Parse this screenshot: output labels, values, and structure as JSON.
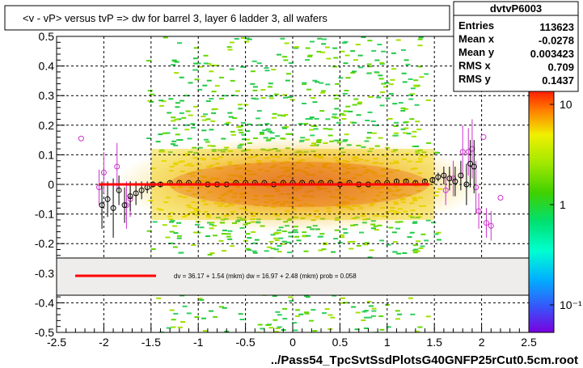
{
  "title": "<v - vP>       versus  tvP =>  dw for barrel 3, layer 6 ladder 3, all wafers",
  "stats": {
    "name": "dvtvP6003",
    "rows": [
      {
        "label": "Entries",
        "value": "113623"
      },
      {
        "label": "Mean x",
        "value": "-0.0278"
      },
      {
        "label": "Mean y",
        "value": "0.003423"
      },
      {
        "label": "RMS x",
        "value": "0.709"
      },
      {
        "label": "RMS y",
        "value": "0.1437"
      }
    ]
  },
  "fit_text": "dv =    36.17 +   1.54 (mkm) dw =    16.97 +   2.48 (mkm) prob = 0.058",
  "colors": {
    "fit_line": "#ff0000",
    "open_circle": "#000000",
    "magenta_circle": "#cc33cc",
    "band_fill": "#efecec"
  },
  "chart_data": {
    "type": "heatmap",
    "title": "<v - vP>       versus  tvP =>  dw for barrel 3, layer 6 ladder 3, all wafers",
    "xlabel": "../Pass54_TpcSvtSsdPlotsG40GNFP25rCut0.5cm.root",
    "ylabel": "",
    "xlim": [
      -2.5,
      2.5
    ],
    "ylim": [
      -0.5,
      0.5
    ],
    "x_ticks": [
      "-2.5",
      "-2",
      "-1.5",
      "-1",
      "-0.5",
      "0",
      "0.5",
      "1",
      "1.5",
      "2",
      "2.5"
    ],
    "y_ticks": [
      "-0.5",
      "-0.4",
      "-0.3",
      "-0.2",
      "-0.1",
      "0",
      "0.1",
      "0.2",
      "0.3",
      "0.4",
      "0.5"
    ],
    "grid": true,
    "colorbar": {
      "scale": "log",
      "labels": [
        "10",
        "1",
        "10⁻¹"
      ]
    },
    "fit_line": {
      "x": [
        -2.05,
        1.45
      ],
      "y": [
        0.0,
        0.0
      ]
    },
    "profile_mean_points": [
      {
        "x": -2.02,
        "y": -0.07,
        "err": 0.08
      },
      {
        "x": -1.96,
        "y": -0.05,
        "err": 0.06
      },
      {
        "x": -1.9,
        "y": -0.08,
        "err": 0.1
      },
      {
        "x": -1.84,
        "y": -0.02,
        "err": 0.05
      },
      {
        "x": -1.78,
        "y": -0.07,
        "err": 0.06
      },
      {
        "x": -1.72,
        "y": -0.04,
        "err": 0.05
      },
      {
        "x": -1.66,
        "y": -0.03,
        "err": 0.04
      },
      {
        "x": -1.6,
        "y": -0.02,
        "err": 0.03
      },
      {
        "x": -1.54,
        "y": -0.01,
        "err": 0.02
      },
      {
        "x": -1.48,
        "y": 0.0,
        "err": 0.01
      },
      {
        "x": -1.4,
        "y": 0.0,
        "err": 0.008
      },
      {
        "x": -1.3,
        "y": 0.005,
        "err": 0.006
      },
      {
        "x": -1.2,
        "y": 0.005,
        "err": 0.005
      },
      {
        "x": -1.1,
        "y": 0.005,
        "err": 0.004
      },
      {
        "x": -1.0,
        "y": 0.005,
        "err": 0.004
      },
      {
        "x": -0.9,
        "y": 0.0,
        "err": 0.004
      },
      {
        "x": -0.8,
        "y": 0.0,
        "err": 0.004
      },
      {
        "x": -0.7,
        "y": 0.0,
        "err": 0.004
      },
      {
        "x": -0.6,
        "y": 0.005,
        "err": 0.004
      },
      {
        "x": -0.5,
        "y": 0.005,
        "err": 0.004
      },
      {
        "x": -0.4,
        "y": 0.005,
        "err": 0.004
      },
      {
        "x": -0.3,
        "y": 0.005,
        "err": 0.004
      },
      {
        "x": -0.2,
        "y": 0.0,
        "err": 0.004
      },
      {
        "x": -0.1,
        "y": 0.005,
        "err": 0.004
      },
      {
        "x": 0.0,
        "y": 0.005,
        "err": 0.004
      },
      {
        "x": 0.1,
        "y": 0.005,
        "err": 0.004
      },
      {
        "x": 0.2,
        "y": 0.005,
        "err": 0.004
      },
      {
        "x": 0.3,
        "y": 0.005,
        "err": 0.004
      },
      {
        "x": 0.4,
        "y": 0.005,
        "err": 0.004
      },
      {
        "x": 0.5,
        "y": 0.0,
        "err": 0.004
      },
      {
        "x": 0.6,
        "y": 0.005,
        "err": 0.004
      },
      {
        "x": 0.7,
        "y": 0.0,
        "err": 0.004
      },
      {
        "x": 0.8,
        "y": 0.0,
        "err": 0.004
      },
      {
        "x": 0.9,
        "y": 0.005,
        "err": 0.004
      },
      {
        "x": 1.0,
        "y": 0.005,
        "err": 0.004
      },
      {
        "x": 1.1,
        "y": 0.01,
        "err": 0.005
      },
      {
        "x": 1.2,
        "y": 0.01,
        "err": 0.005
      },
      {
        "x": 1.3,
        "y": 0.005,
        "err": 0.006
      },
      {
        "x": 1.4,
        "y": 0.01,
        "err": 0.008
      },
      {
        "x": 1.48,
        "y": 0.015,
        "err": 0.01
      },
      {
        "x": 1.54,
        "y": 0.025,
        "err": 0.015
      },
      {
        "x": 1.6,
        "y": 0.03,
        "err": 0.03
      },
      {
        "x": 1.66,
        "y": 0.02,
        "err": 0.04
      },
      {
        "x": 1.72,
        "y": 0.01,
        "err": 0.05
      },
      {
        "x": 1.78,
        "y": 0.03,
        "err": 0.05
      },
      {
        "x": 1.84,
        "y": 0.0,
        "err": 0.07
      },
      {
        "x": 1.88,
        "y": 0.07,
        "err": 0.08
      },
      {
        "x": 1.92,
        "y": 0.06,
        "err": 0.09
      }
    ],
    "secondary_points": [
      {
        "x": -2.24,
        "y": 0.155,
        "err": 0.0
      },
      {
        "x": -2.05,
        "y": -0.01,
        "err": 0.06
      },
      {
        "x": -2.0,
        "y": 0.04,
        "err": 0.07
      },
      {
        "x": -1.86,
        "y": 0.06,
        "err": 0.08
      },
      {
        "x": -1.76,
        "y": -0.07,
        "err": 0.08
      },
      {
        "x": -1.72,
        "y": -0.05,
        "err": 0.06
      },
      {
        "x": 1.62,
        "y": -0.02,
        "err": 0.05
      },
      {
        "x": 1.7,
        "y": 0.02,
        "err": 0.06
      },
      {
        "x": 1.8,
        "y": 0.11,
        "err": 0.09
      },
      {
        "x": 1.86,
        "y": 0.11,
        "err": 0.08
      },
      {
        "x": 1.9,
        "y": 0.12,
        "err": 0.1
      },
      {
        "x": 1.94,
        "y": -0.01,
        "err": 0.09
      },
      {
        "x": 1.97,
        "y": -0.09,
        "err": 0.06
      },
      {
        "x": 2.02,
        "y": 0.16,
        "err": 0.0
      },
      {
        "x": 2.05,
        "y": -0.13,
        "err": 0.05
      },
      {
        "x": 2.1,
        "y": -0.14,
        "err": 0.05
      },
      {
        "x": 2.2,
        "y": -0.045,
        "err": 0.0
      }
    ]
  }
}
